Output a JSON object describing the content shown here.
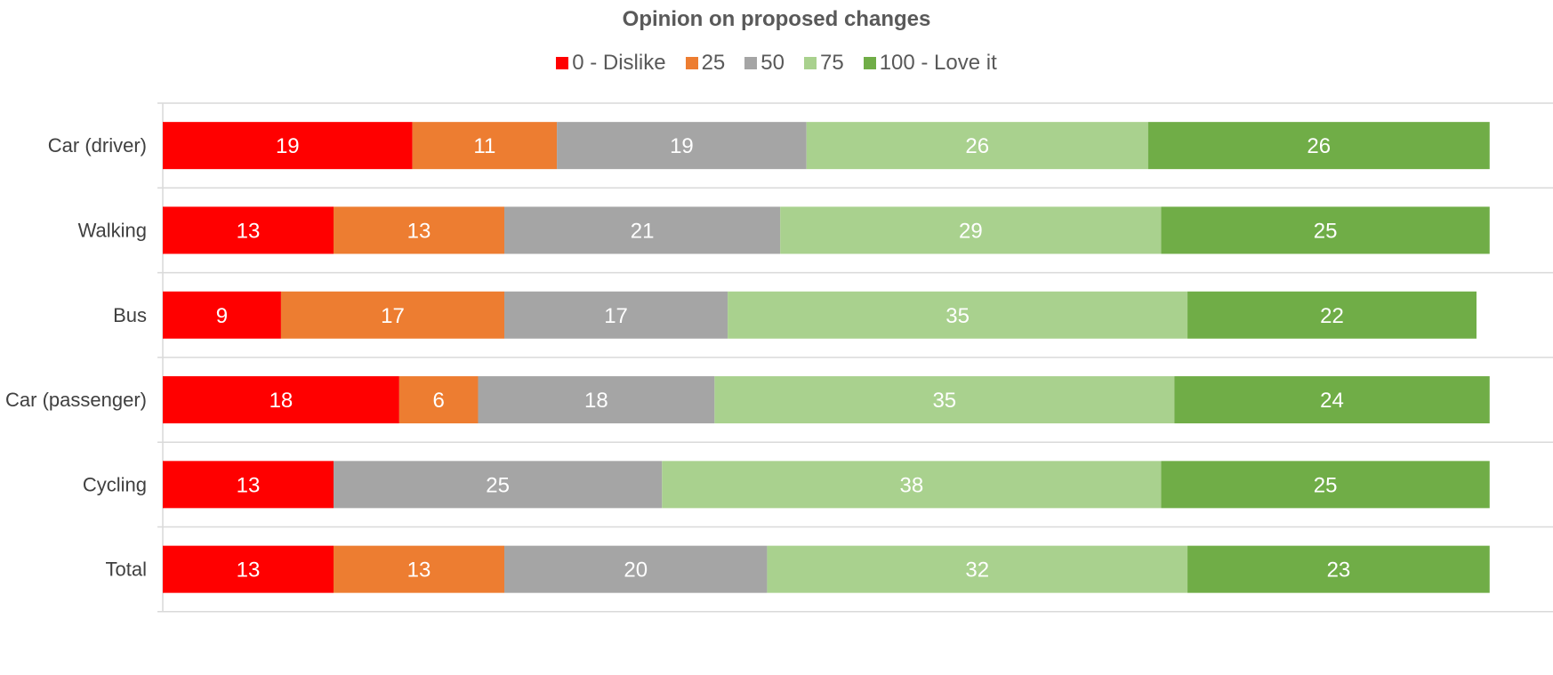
{
  "chart_data": {
    "type": "bar",
    "orientation": "horizontal",
    "stacked": true,
    "title": "Opinion on proposed changes",
    "categories": [
      "Car (driver)",
      "Walking",
      "Bus",
      "Car (passenger)",
      "Cycling",
      "Total"
    ],
    "series": [
      {
        "name": "0 - Dislike",
        "color": "#ff0000",
        "values": [
          19,
          13,
          9,
          18,
          13,
          13
        ]
      },
      {
        "name": "25",
        "color": "#ed7d31",
        "values": [
          11,
          13,
          17,
          6,
          0,
          13
        ]
      },
      {
        "name": "50",
        "color": "#a5a5a5",
        "values": [
          19,
          21,
          17,
          18,
          25,
          20
        ]
      },
      {
        "name": "75",
        "color": "#a9d18e",
        "values": [
          26,
          29,
          35,
          35,
          38,
          32
        ]
      },
      {
        "name": "100 - Love it",
        "color": "#70ad47",
        "values": [
          26,
          25,
          22,
          24,
          25,
          23
        ]
      }
    ],
    "xlim": [
      0,
      100
    ],
    "legend_position": "top",
    "grid": true,
    "data_labels": true
  }
}
